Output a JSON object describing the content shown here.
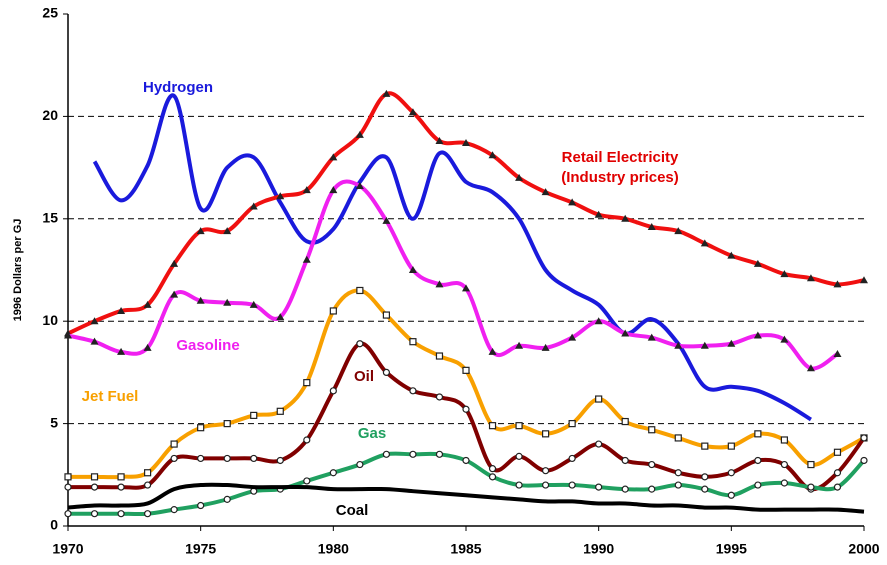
{
  "chart_data": {
    "type": "line",
    "y_label": "1996 Dollars per GJ",
    "xlim": [
      1970,
      2000
    ],
    "xticks": [
      1970,
      1975,
      1980,
      1985,
      1990,
      1995,
      2000
    ],
    "ylim": [
      0,
      25
    ],
    "yticks": [
      0,
      5,
      10,
      15,
      20,
      25
    ],
    "grid": true,
    "x": [
      1970,
      1971,
      1972,
      1973,
      1974,
      1975,
      1976,
      1977,
      1978,
      1979,
      1980,
      1981,
      1982,
      1983,
      1984,
      1985,
      1986,
      1987,
      1988,
      1989,
      1990,
      1991,
      1992,
      1993,
      1994,
      1995,
      1996,
      1997,
      1998,
      1999,
      2000
    ],
    "series": [
      {
        "name": "Hydrogen",
        "color": "#1a1adc",
        "marker": "none",
        "values": [
          null,
          17.8,
          15.9,
          17.6,
          21.0,
          15.5,
          17.5,
          18.0,
          15.8,
          13.9,
          14.5,
          16.8,
          18.0,
          15.0,
          18.2,
          16.8,
          16.3,
          15.0,
          12.5,
          11.5,
          10.8,
          9.4,
          10.1,
          8.9,
          6.8,
          6.8,
          6.6,
          6.0,
          5.2,
          null,
          null
        ]
      },
      {
        "name": "Retail Electricity (Industry prices)",
        "color": "#f01010",
        "marker": "triangle",
        "values": [
          9.4,
          10.0,
          10.5,
          10.8,
          12.8,
          14.4,
          14.4,
          15.6,
          16.1,
          16.4,
          18.0,
          19.1,
          21.1,
          20.2,
          18.8,
          18.7,
          18.1,
          17.0,
          16.3,
          15.8,
          15.2,
          15.0,
          14.6,
          14.4,
          13.8,
          13.2,
          12.8,
          12.3,
          12.1,
          11.8,
          12.0
        ]
      },
      {
        "name": "Gasoline",
        "color": "#f020f0",
        "marker": "triangle",
        "values": [
          9.3,
          9.0,
          8.5,
          8.7,
          11.3,
          11.0,
          10.9,
          10.8,
          10.2,
          13.0,
          16.4,
          16.6,
          14.9,
          12.5,
          11.8,
          11.6,
          8.5,
          8.8,
          8.7,
          9.2,
          10.0,
          9.4,
          9.2,
          8.8,
          8.8,
          8.9,
          9.3,
          9.1,
          7.7,
          8.4,
          null
        ]
      },
      {
        "name": "Jet Fuel",
        "color": "#f8a000",
        "marker": "square",
        "values": [
          2.4,
          2.4,
          2.4,
          2.6,
          4.0,
          4.8,
          5.0,
          5.4,
          5.6,
          7.0,
          10.5,
          11.5,
          10.3,
          9.0,
          8.3,
          7.6,
          4.9,
          4.9,
          4.5,
          5.0,
          6.2,
          5.1,
          4.7,
          4.3,
          3.9,
          3.9,
          4.5,
          4.2,
          3.0,
          3.6,
          4.3
        ]
      },
      {
        "name": "Oil",
        "color": "#800000",
        "marker": "circle",
        "values": [
          1.9,
          1.9,
          1.9,
          2.0,
          3.3,
          3.3,
          3.3,
          3.3,
          3.2,
          4.2,
          6.6,
          8.9,
          7.5,
          6.6,
          6.3,
          5.7,
          2.8,
          3.4,
          2.7,
          3.3,
          4.0,
          3.2,
          3.0,
          2.6,
          2.4,
          2.6,
          3.2,
          3.0,
          1.8,
          2.6,
          4.3
        ]
      },
      {
        "name": "Gas",
        "color": "#20a060",
        "marker": "circle",
        "values": [
          0.6,
          0.6,
          0.6,
          0.6,
          0.8,
          1.0,
          1.3,
          1.7,
          1.8,
          2.2,
          2.6,
          3.0,
          3.5,
          3.5,
          3.5,
          3.2,
          2.4,
          2.0,
          2.0,
          2.0,
          1.9,
          1.8,
          1.8,
          2.0,
          1.8,
          1.5,
          2.0,
          2.1,
          1.9,
          1.9,
          3.2
        ]
      },
      {
        "name": "Coal",
        "color": "#000000",
        "marker": "none",
        "values": [
          0.9,
          1.0,
          1.0,
          1.1,
          1.8,
          2.0,
          2.0,
          1.9,
          1.9,
          1.9,
          1.8,
          1.8,
          1.8,
          1.7,
          1.6,
          1.5,
          1.4,
          1.3,
          1.2,
          1.2,
          1.1,
          1.1,
          1.0,
          1.0,
          0.9,
          0.9,
          0.8,
          0.8,
          0.8,
          0.8,
          0.7
        ]
      }
    ]
  }
}
